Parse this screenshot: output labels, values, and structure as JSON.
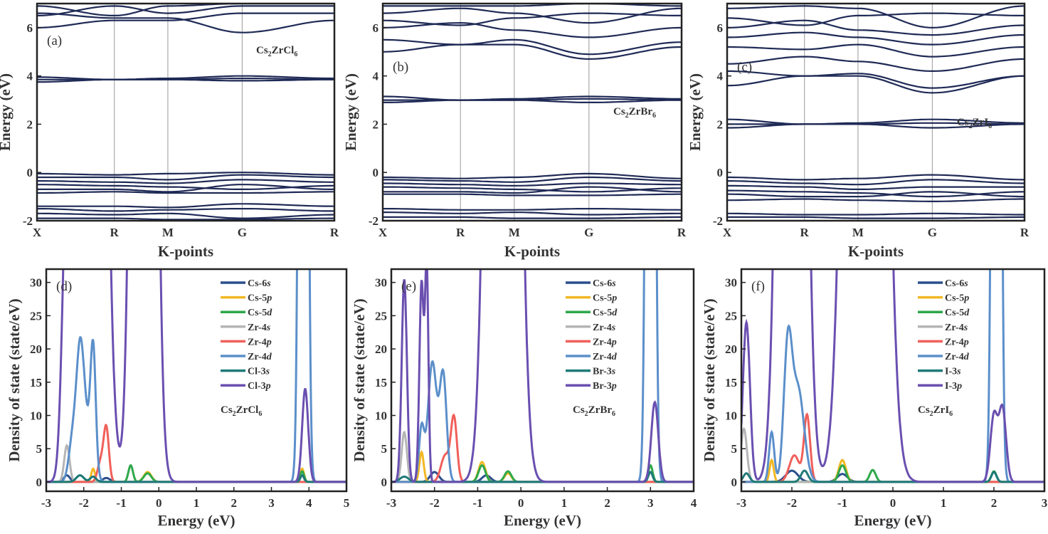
{
  "chart_data": [
    {
      "type": "line",
      "subtype": "band-structure",
      "panel": "(a)",
      "formula": [
        "Cs",
        "2",
        "ZrCl",
        "6"
      ],
      "xlabel": "K-points",
      "ylabel": "Energy (eV)",
      "ylim": [
        -2,
        7
      ],
      "yticks": [
        -2,
        0,
        2,
        4,
        6
      ],
      "kpoints": [
        "X",
        "R",
        "M",
        "G",
        "R"
      ],
      "kpos": [
        0,
        0.26,
        0.44,
        0.69,
        1
      ],
      "color": "#1f2a56",
      "bands": [
        [
          -0.05,
          -0.1,
          -0.05,
          0.0,
          -0.1
        ],
        [
          -0.2,
          -0.2,
          -0.3,
          -0.1,
          -0.2
        ],
        [
          -0.35,
          -0.4,
          -0.45,
          -0.3,
          -0.4
        ],
        [
          -0.5,
          -0.55,
          -0.6,
          -0.7,
          -0.55
        ],
        [
          -0.7,
          -0.7,
          -0.8,
          -0.5,
          -0.7
        ],
        [
          -0.85,
          -0.8,
          -0.85,
          -0.85,
          -0.8
        ],
        [
          -1.4,
          -1.4,
          -1.45,
          -1.3,
          -1.4
        ],
        [
          -1.5,
          -1.6,
          -1.55,
          -1.5,
          -1.6
        ],
        [
          -1.7,
          -1.75,
          -1.7,
          -1.9,
          -1.75
        ],
        [
          -1.9,
          -1.9,
          -1.95,
          -1.95,
          -1.9
        ],
        [
          3.95,
          3.85,
          3.85,
          3.8,
          3.85
        ],
        [
          3.85,
          3.85,
          3.9,
          4.0,
          3.9
        ],
        [
          3.75,
          3.85,
          3.85,
          3.9,
          3.85
        ],
        [
          6.6,
          6.4,
          6.4,
          5.8,
          6.3
        ],
        [
          6.0,
          6.3,
          6.3,
          6.6,
          6.6
        ],
        [
          6.5,
          6.9,
          6.6,
          6.9,
          6.9
        ],
        [
          6.9,
          6.5,
          6.9,
          7.0,
          7.0
        ]
      ]
    },
    {
      "type": "line",
      "subtype": "band-structure",
      "panel": "(b)",
      "formula": [
        "Cs",
        "2",
        "ZrBr",
        "6"
      ],
      "xlabel": "K-points",
      "ylabel": "Energy (eV)",
      "ylim": [
        -2,
        7
      ],
      "yticks": [
        -2,
        0,
        2,
        4,
        6
      ],
      "kpoints": [
        "X",
        "R",
        "M",
        "G",
        "R"
      ],
      "kpos": [
        0,
        0.26,
        0.44,
        0.69,
        1
      ],
      "color": "#1f2a56",
      "bands": [
        [
          -0.2,
          -0.25,
          -0.2,
          -0.05,
          -0.25
        ],
        [
          -0.3,
          -0.35,
          -0.4,
          -0.2,
          -0.35
        ],
        [
          -0.45,
          -0.5,
          -0.55,
          -0.45,
          -0.5
        ],
        [
          -0.6,
          -0.65,
          -0.7,
          -0.8,
          -0.65
        ],
        [
          -0.8,
          -0.8,
          -0.85,
          -0.6,
          -0.8
        ],
        [
          -0.9,
          -0.9,
          -0.95,
          -0.95,
          -0.9
        ],
        [
          -1.5,
          -1.55,
          -1.55,
          -1.5,
          -1.55
        ],
        [
          -1.65,
          -1.7,
          -1.65,
          -1.75,
          -1.7
        ],
        [
          -1.85,
          -1.85,
          -1.9,
          -1.9,
          -1.85
        ],
        [
          3.15,
          3.0,
          3.0,
          2.9,
          3.0
        ],
        [
          3.0,
          3.0,
          3.05,
          3.15,
          3.05
        ],
        [
          2.9,
          3.0,
          3.0,
          3.05,
          3.0
        ],
        [
          5.0,
          5.3,
          5.3,
          4.7,
          5.2
        ],
        [
          5.5,
          5.3,
          5.5,
          4.9,
          5.4
        ],
        [
          6.0,
          6.2,
          5.9,
          5.6,
          6.0
        ],
        [
          6.3,
          6.1,
          6.4,
          6.6,
          6.5
        ],
        [
          6.6,
          6.8,
          6.6,
          6.2,
          6.8
        ],
        [
          6.9,
          6.9,
          6.9,
          7.0,
          6.9
        ]
      ]
    },
    {
      "type": "line",
      "subtype": "band-structure",
      "panel": "(c)",
      "formula": [
        "Cs",
        "2",
        "ZrI",
        "6"
      ],
      "xlabel": "K-points",
      "ylabel": "Energy (eV)",
      "ylim": [
        -2,
        7
      ],
      "yticks": [
        -2,
        0,
        2,
        4,
        6
      ],
      "kpoints": [
        "X",
        "R",
        "M",
        "G",
        "R"
      ],
      "kpos": [
        0,
        0.26,
        0.44,
        0.69,
        1
      ],
      "color": "#1f2a56",
      "bands": [
        [
          -0.2,
          -0.3,
          -0.25,
          -0.1,
          -0.3
        ],
        [
          -0.35,
          -0.45,
          -0.5,
          -0.3,
          -0.45
        ],
        [
          -0.55,
          -0.6,
          -0.7,
          -0.6,
          -0.6
        ],
        [
          -0.75,
          -0.8,
          -0.85,
          -1.0,
          -0.8
        ],
        [
          -0.9,
          -1.0,
          -1.0,
          -0.8,
          -1.0
        ],
        [
          -1.15,
          -1.1,
          -1.15,
          -1.2,
          -1.1
        ],
        [
          -1.7,
          -1.75,
          -1.75,
          -1.7,
          -1.75
        ],
        [
          -1.85,
          -1.85,
          -1.9,
          -1.9,
          -1.85
        ],
        [
          2.2,
          2.0,
          2.0,
          1.85,
          2.0
        ],
        [
          2.0,
          2.0,
          2.05,
          2.2,
          2.05
        ],
        [
          1.85,
          2.0,
          2.0,
          2.05,
          2.0
        ],
        [
          3.6,
          4.0,
          4.0,
          3.3,
          4.0
        ],
        [
          4.2,
          4.0,
          4.1,
          3.5,
          4.0
        ],
        [
          4.5,
          4.8,
          4.6,
          4.2,
          4.7
        ],
        [
          5.2,
          5.1,
          5.3,
          4.8,
          5.2
        ],
        [
          5.6,
          5.8,
          5.6,
          5.3,
          5.7
        ],
        [
          6.0,
          6.3,
          5.9,
          5.7,
          6.1
        ],
        [
          6.4,
          6.1,
          6.5,
          6.6,
          6.5
        ],
        [
          6.8,
          6.9,
          6.8,
          6.0,
          6.9
        ]
      ]
    },
    {
      "type": "line",
      "subtype": "pdos",
      "panel": "(d)",
      "formula": [
        "Cs",
        "2",
        "ZrCl",
        "6"
      ],
      "xlabel": "Energy (eV)",
      "ylabel": "Density of state (state/eV)",
      "xlim": [
        -3,
        5
      ],
      "ylim": [
        -1.4,
        32
      ],
      "xticks": [
        -3,
        -2,
        -1,
        0,
        1,
        2,
        3,
        4,
        5
      ],
      "yticks": [
        0,
        5,
        10,
        15,
        20,
        25,
        30
      ],
      "series": [
        {
          "name": [
            "Cs-6",
            "s"
          ],
          "color": "#2b4f8c",
          "peaks": [
            [
              -2.45,
              1,
              0.08
            ],
            [
              -1.4,
              0.6,
              0.1
            ],
            [
              3.82,
              1,
              0.05
            ]
          ]
        },
        {
          "name": [
            "Cs-5",
            "p"
          ],
          "color": "#f2b824",
          "peaks": [
            [
              -1.75,
              2,
              0.05
            ],
            [
              -0.3,
              1.5,
              0.1
            ],
            [
              3.82,
              2,
              0.05
            ]
          ]
        },
        {
          "name": [
            "Cs-5",
            "d"
          ],
          "color": "#2ea84a",
          "peaks": [
            [
              -2.1,
              1,
              0.1
            ],
            [
              -0.75,
              2.5,
              0.06
            ],
            [
              -0.3,
              1.3,
              0.1
            ],
            [
              3.82,
              1.6,
              0.05
            ]
          ]
        },
        {
          "name": [
            "Zr-4",
            "s"
          ],
          "color": "#b5b5b5",
          "peaks": [
            [
              -2.45,
              5.5,
              0.07
            ]
          ]
        },
        {
          "name": [
            "Zr-4",
            "p"
          ],
          "color": "#f0605a",
          "peaks": [
            [
              -1.4,
              8,
              0.07
            ],
            [
              -1.55,
              3,
              0.08
            ]
          ]
        },
        {
          "name": [
            "Zr-4",
            "d"
          ],
          "color": "#5b8fca",
          "peaks": [
            [
              -2.1,
              16,
              0.1
            ],
            [
              -1.75,
              18,
              0.07
            ],
            [
              -2.3,
              6,
              0.1
            ],
            [
              -1.95,
              8,
              0.15
            ],
            [
              3.85,
              300,
              0.08
            ]
          ]
        },
        {
          "name": [
            "Cl-3",
            "s"
          ],
          "color": "#1f7a78",
          "peaks": [
            [
              -2.1,
              1,
              0.1
            ],
            [
              -1.75,
              0.8,
              0.08
            ],
            [
              3.82,
              1,
              0.05
            ]
          ]
        },
        {
          "name": [
            "Cl-3",
            "p"
          ],
          "color": "#6a4fb0",
          "peaks": [
            [
              -2.45,
              40,
              0.12
            ],
            [
              -1.8,
              300,
              0.25
            ],
            [
              -0.4,
              400,
              0.2
            ],
            [
              3.9,
              14,
              0.08
            ]
          ]
        }
      ]
    },
    {
      "type": "line",
      "subtype": "pdos",
      "panel": "(e)",
      "formula": [
        "Cs",
        "2",
        "ZrBr",
        "6"
      ],
      "xlabel": "Energy (eV)",
      "ylabel": "Density of state (state/eV)",
      "xlim": [
        -3,
        4
      ],
      "ylim": [
        -1.4,
        32
      ],
      "xticks": [
        -3,
        -2,
        -1,
        0,
        1,
        2,
        3,
        4
      ],
      "yticks": [
        0,
        5,
        10,
        15,
        20,
        25,
        30
      ],
      "series": [
        {
          "name": [
            "Cs-6",
            "s"
          ],
          "color": "#2b4f8c",
          "peaks": [
            [
              -2.0,
              1.5,
              0.1
            ],
            [
              -0.8,
              1,
              0.1
            ]
          ]
        },
        {
          "name": [
            "Cs-5",
            "p"
          ],
          "color": "#f2b824",
          "peaks": [
            [
              -2.3,
              4.5,
              0.05
            ],
            [
              -0.9,
              3,
              0.08
            ],
            [
              -0.3,
              1.3,
              0.08
            ]
          ]
        },
        {
          "name": [
            "Cs-5",
            "d"
          ],
          "color": "#2ea84a",
          "peaks": [
            [
              -0.9,
              2.5,
              0.08
            ],
            [
              -0.3,
              1.6,
              0.08
            ],
            [
              3.0,
              2.5,
              0.05
            ]
          ]
        },
        {
          "name": [
            "Zr-4",
            "s"
          ],
          "color": "#b5b5b5",
          "peaks": [
            [
              -2.7,
              7.5,
              0.06
            ]
          ]
        },
        {
          "name": [
            "Zr-4",
            "p"
          ],
          "color": "#f0605a",
          "peaks": [
            [
              -1.55,
              9.5,
              0.07
            ],
            [
              -1.75,
              4,
              0.1
            ]
          ]
        },
        {
          "name": [
            "Zr-4",
            "d"
          ],
          "color": "#5b8fca",
          "peaks": [
            [
              -2.05,
              18,
              0.1
            ],
            [
              -1.8,
              16,
              0.08
            ],
            [
              -2.3,
              8,
              0.06
            ],
            [
              3.0,
              300,
              0.07
            ]
          ]
        },
        {
          "name": [
            "Br-3",
            "s"
          ],
          "color": "#1f7a78",
          "peaks": [
            [
              -2.7,
              0.8,
              0.1
            ],
            [
              3.0,
              1.5,
              0.05
            ]
          ]
        },
        {
          "name": [
            "Br-3",
            "p"
          ],
          "color": "#6a4fb0",
          "peaks": [
            [
              -2.7,
              30.5,
              0.06
            ],
            [
              -2.3,
              30,
              0.05
            ],
            [
              -2.18,
              32,
              0.04
            ],
            [
              -0.42,
              400,
              0.23
            ],
            [
              3.1,
              12,
              0.08
            ]
          ]
        }
      ]
    },
    {
      "type": "line",
      "subtype": "pdos",
      "panel": "(f)",
      "formula": [
        "Cs",
        "2",
        "ZrI",
        "6"
      ],
      "xlabel": "Energy (eV)",
      "ylabel": "Density of state (state/eV)",
      "xlim": [
        -3,
        3
      ],
      "ylim": [
        -1.4,
        32
      ],
      "xticks": [
        -3,
        -2,
        -1,
        0,
        1,
        2,
        3
      ],
      "yticks": [
        0,
        5,
        10,
        15,
        20,
        25,
        30
      ],
      "series": [
        {
          "name": [
            "Cs-6",
            "s"
          ],
          "color": "#2b4f8c",
          "peaks": [
            [
              -2.0,
              1.7,
              0.12
            ],
            [
              -1.0,
              1.2,
              0.1
            ]
          ]
        },
        {
          "name": [
            "Cs-5",
            "p"
          ],
          "color": "#f2b824",
          "peaks": [
            [
              -2.4,
              3.3,
              0.04
            ],
            [
              -1.0,
              3.3,
              0.07
            ]
          ]
        },
        {
          "name": [
            "Cs-5",
            "d"
          ],
          "color": "#2ea84a",
          "peaks": [
            [
              -1.0,
              2.5,
              0.07
            ],
            [
              -0.4,
              1.8,
              0.06
            ],
            [
              2.0,
              1.6,
              0.05
            ]
          ]
        },
        {
          "name": [
            "Zr-4",
            "s"
          ],
          "color": "#b5b5b5",
          "peaks": [
            [
              -2.95,
              8,
              0.06
            ]
          ]
        },
        {
          "name": [
            "Zr-4",
            "p"
          ],
          "color": "#f0605a",
          "peaks": [
            [
              -1.7,
              10,
              0.06
            ],
            [
              -1.95,
              4,
              0.1
            ]
          ]
        },
        {
          "name": [
            "Zr-4",
            "d"
          ],
          "color": "#5b8fca",
          "peaks": [
            [
              -2.08,
              19.5,
              0.08
            ],
            [
              -1.88,
              14,
              0.12
            ],
            [
              -2.4,
              7.5,
              0.05
            ],
            [
              2.05,
              300,
              0.06
            ]
          ]
        },
        {
          "name": [
            "I-3",
            "s"
          ],
          "color": "#1f7a78",
          "peaks": [
            [
              -2.9,
              1.3,
              0.06
            ],
            [
              -1.75,
              1.7,
              0.07
            ],
            [
              2.0,
              1.5,
              0.05
            ]
          ]
        },
        {
          "name": [
            "I-3",
            "p"
          ],
          "color": "#6a4fb0",
          "peaks": [
            [
              -2.9,
              24,
              0.07
            ],
            [
              -2.0,
              300,
              0.18
            ],
            [
              -0.55,
              400,
              0.25
            ],
            [
              2.0,
              10,
              0.07
            ],
            [
              2.17,
              11,
              0.07
            ]
          ]
        }
      ]
    }
  ]
}
